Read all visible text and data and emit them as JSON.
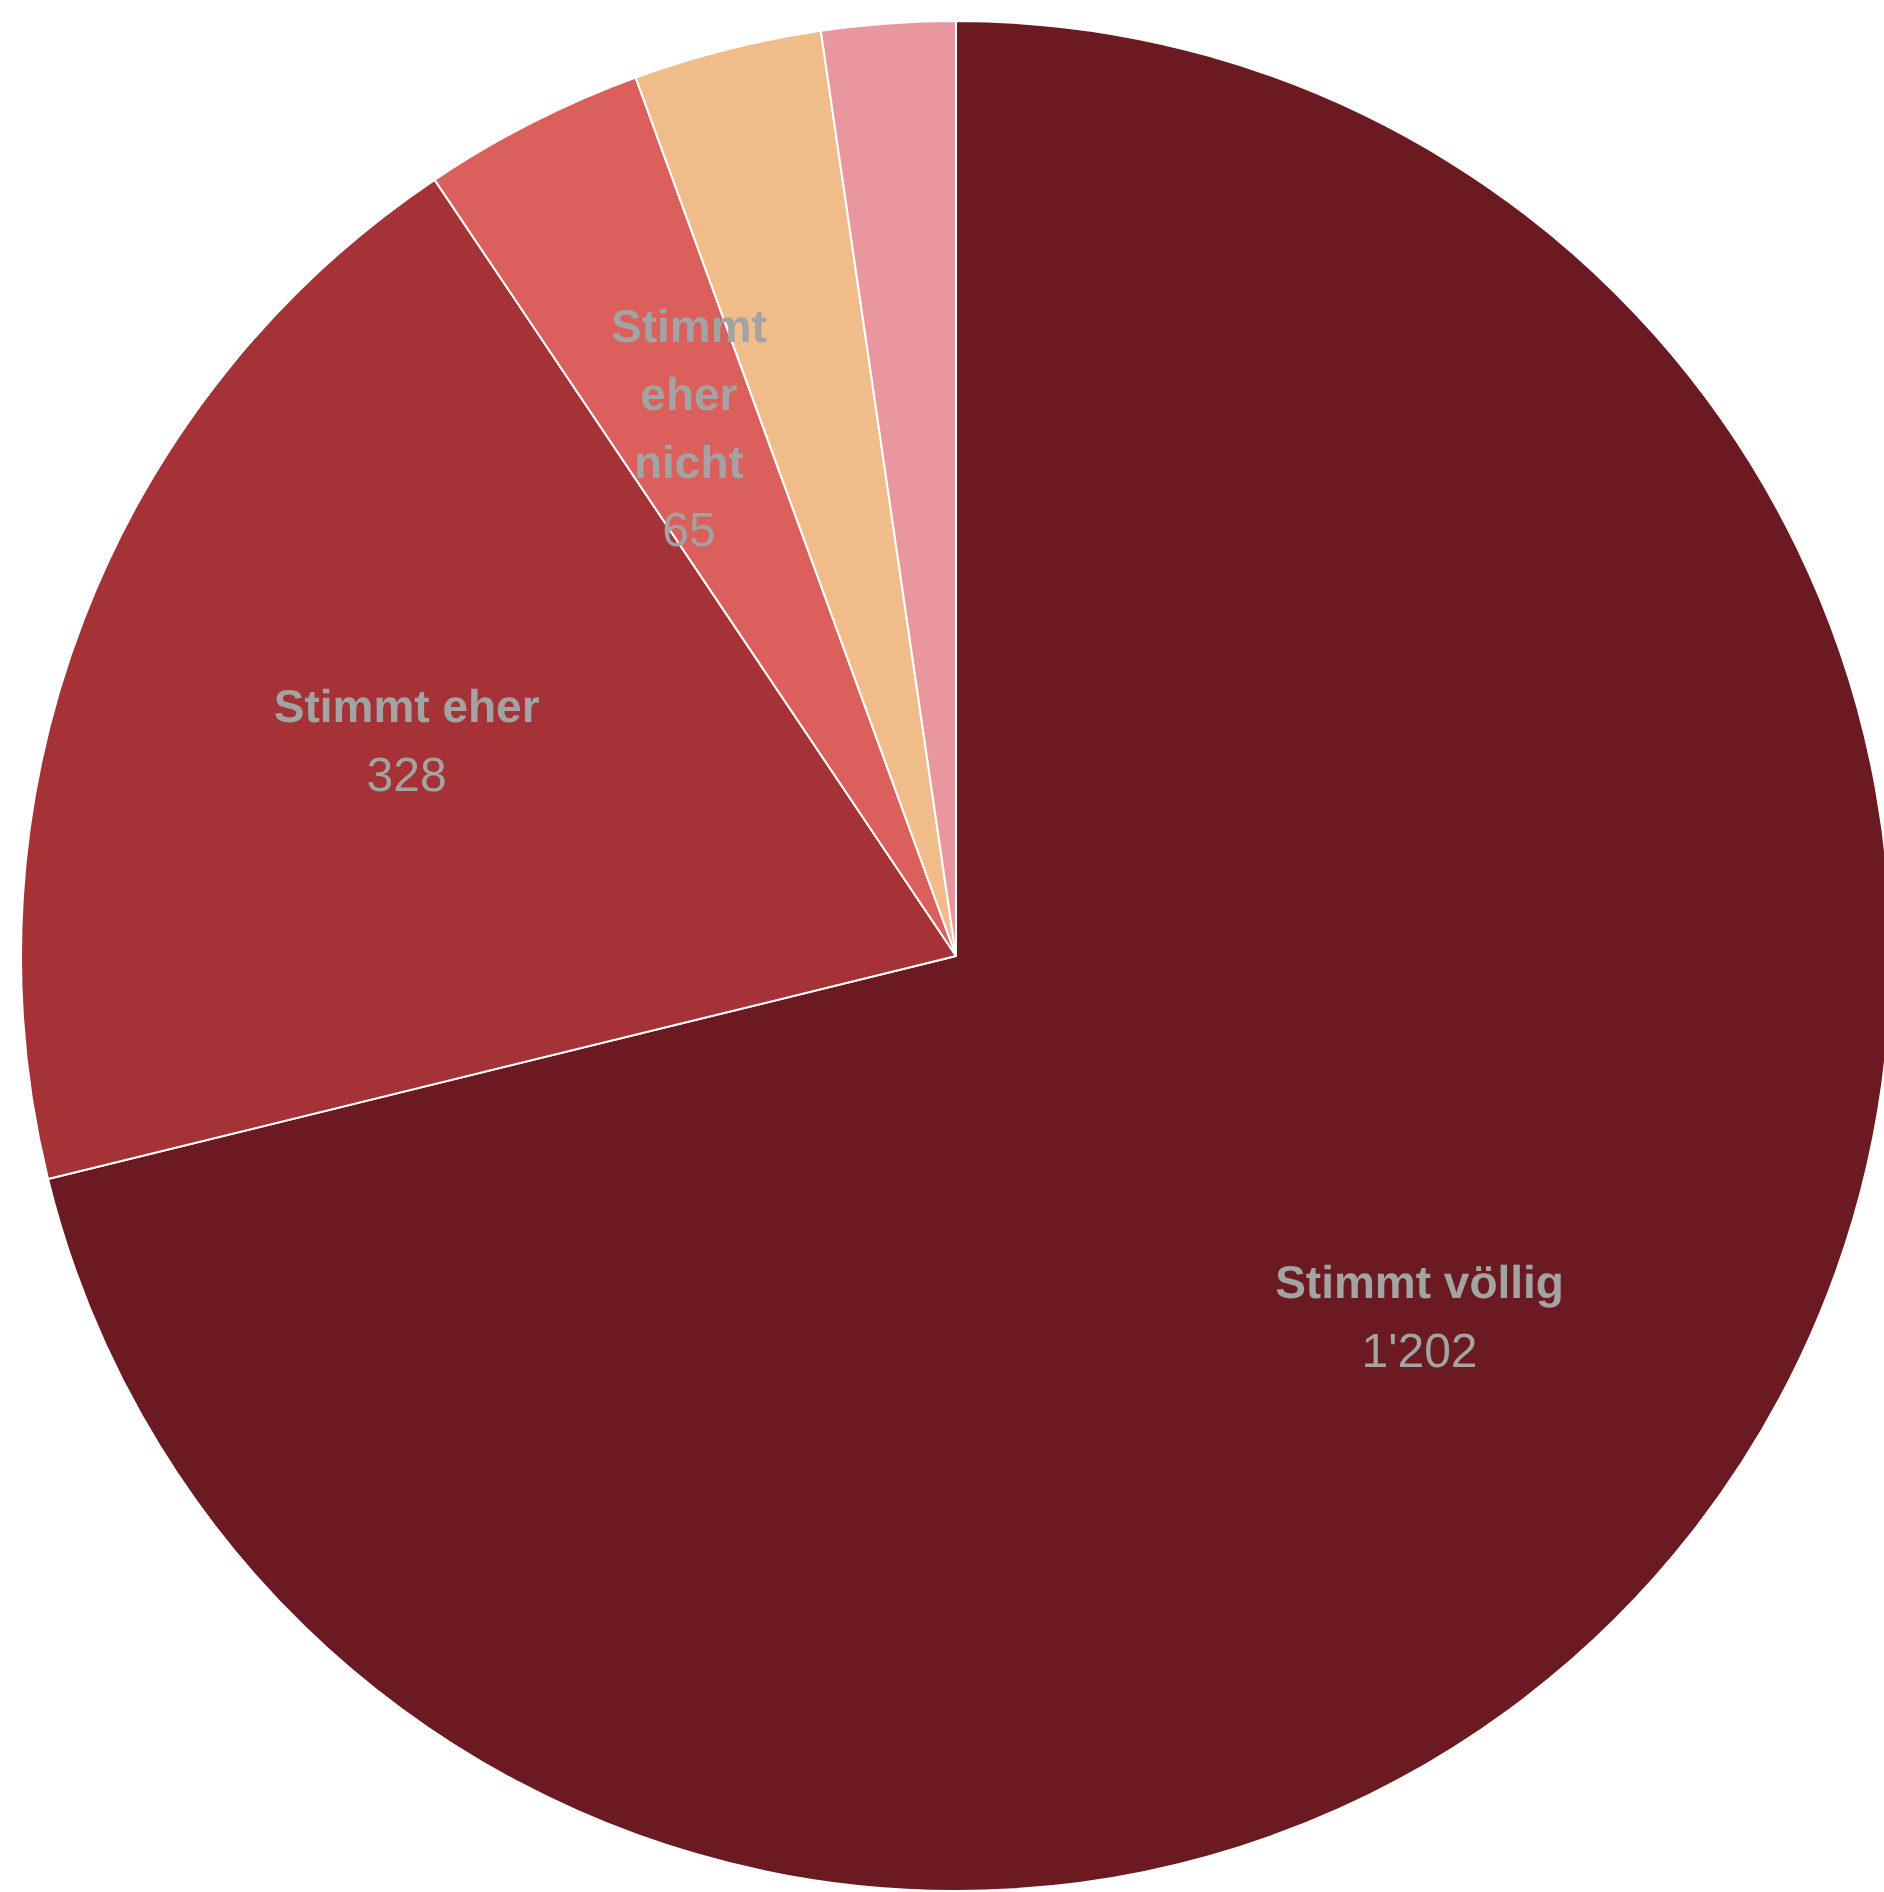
{
  "chart_data": {
    "type": "pie",
    "categories": [
      "Stimmt völlig",
      "Stimmt eher",
      "Stimmt eher nicht",
      null,
      null
    ],
    "values": [
      1202,
      328,
      65,
      55,
      39
    ],
    "colors": [
      "#6a1a20",
      "#a53236",
      "#db5f5a",
      "#f0bd8a",
      "#e8979f"
    ],
    "value_labels": [
      "1'202",
      "328",
      "65",
      null,
      null
    ]
  }
}
